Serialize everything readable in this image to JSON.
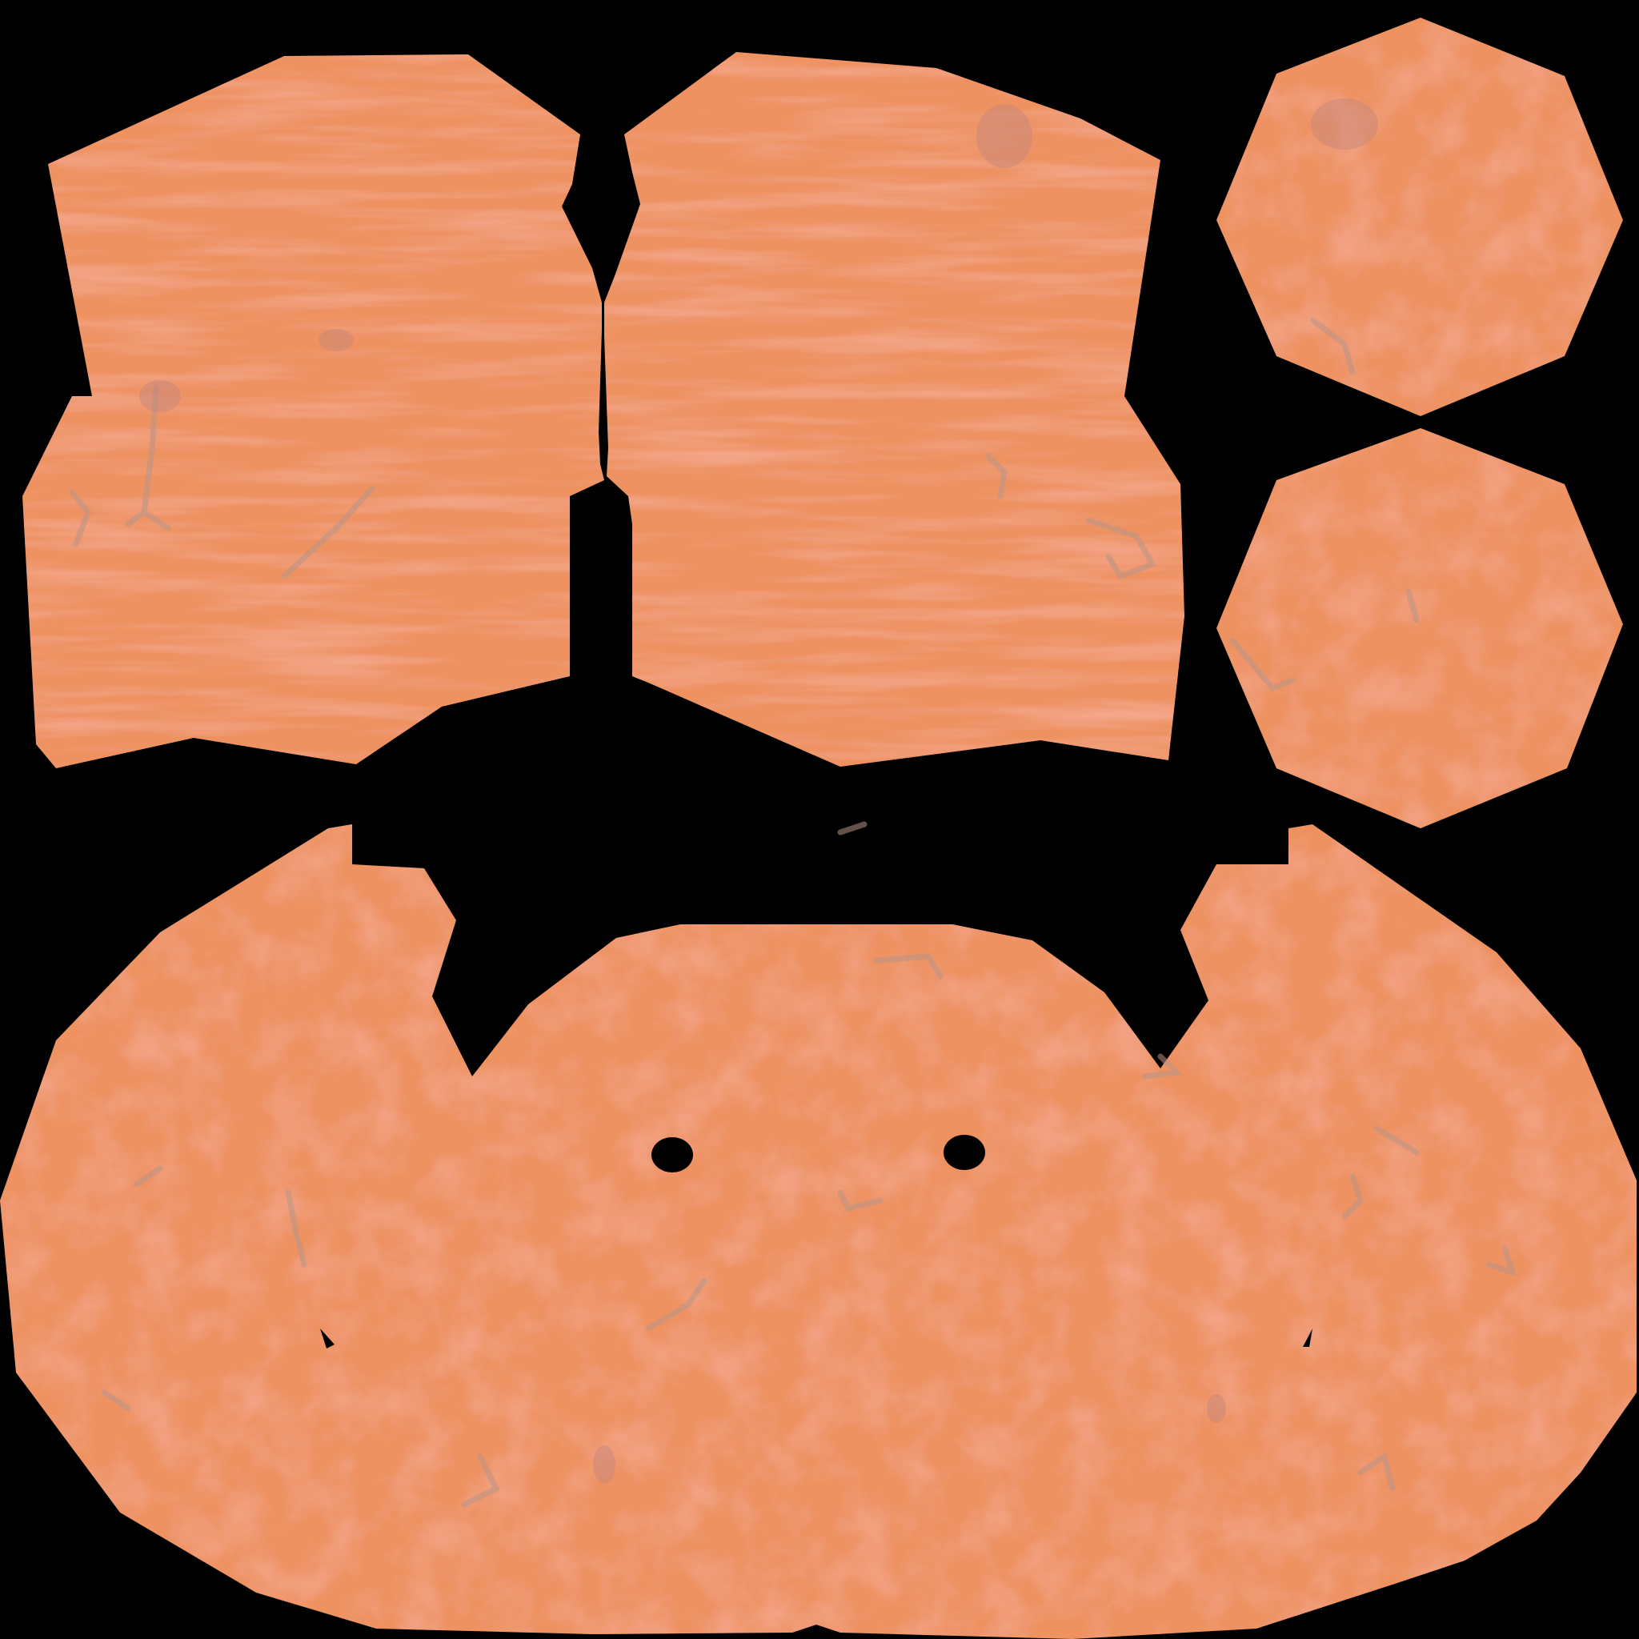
{
  "colors": {
    "background": "#000000",
    "skin_base": "#ee9262",
    "skin_light": "#f29a6c",
    "skin_vein_red": "#e8704e",
    "vein_grey": "#b89486",
    "mark_purple": "#c0857c"
  },
  "islands": [
    {
      "name": "uv-island-upper-left",
      "kind": "texture-island"
    },
    {
      "name": "uv-island-upper-middle",
      "kind": "texture-island"
    },
    {
      "name": "uv-island-octagon-top",
      "kind": "texture-island"
    },
    {
      "name": "uv-island-octagon-bottom",
      "kind": "texture-island"
    },
    {
      "name": "uv-island-bottom-body",
      "kind": "texture-island"
    }
  ]
}
